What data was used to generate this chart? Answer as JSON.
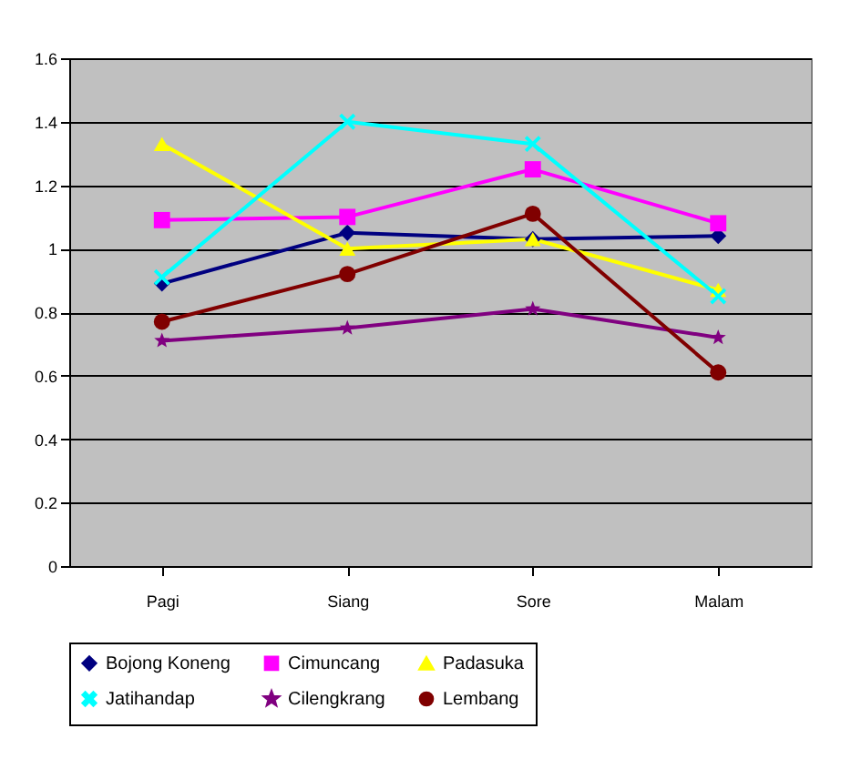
{
  "chart_data": {
    "type": "line",
    "categories": [
      "Pagi",
      "Siang",
      "Sore",
      "Malam"
    ],
    "series": [
      {
        "name": "Bojong Koneng",
        "color": "#000080",
        "marker": "diamond",
        "values": [
          0.89,
          1.05,
          1.03,
          1.04
        ]
      },
      {
        "name": "Cimuncang",
        "color": "#ff00ff",
        "marker": "square",
        "values": [
          1.09,
          1.1,
          1.25,
          1.08
        ]
      },
      {
        "name": "Padasuka",
        "color": "#ffff00",
        "marker": "triangle",
        "values": [
          1.33,
          1.0,
          1.03,
          0.87
        ]
      },
      {
        "name": "Jatihandap",
        "color": "#00ffff",
        "marker": "cross",
        "values": [
          0.91,
          1.4,
          1.33,
          0.85
        ]
      },
      {
        "name": "Cilengkrang",
        "color": "#800080",
        "marker": "star",
        "values": [
          0.71,
          0.75,
          0.81,
          0.72
        ]
      },
      {
        "name": "Lembang",
        "color": "#800000",
        "marker": "circle",
        "values": [
          0.77,
          0.92,
          1.11,
          0.61
        ]
      }
    ],
    "ylim": [
      0,
      1.6
    ],
    "yticks": [
      0,
      0.2,
      0.4,
      0.6,
      0.8,
      1,
      1.2,
      1.4,
      1.6
    ],
    "grid": "y",
    "legend": "bottom",
    "line_style": "solid"
  }
}
